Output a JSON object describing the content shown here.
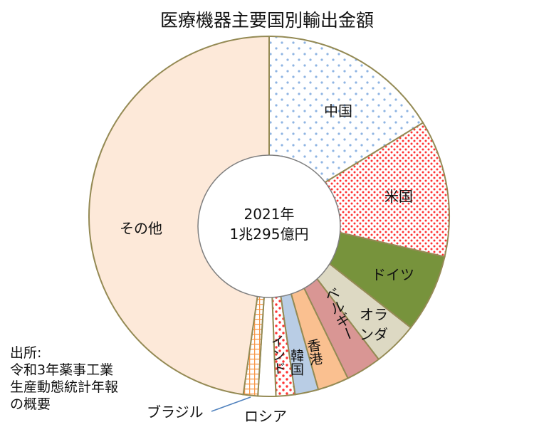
{
  "chart_data": {
    "type": "pie",
    "variant": "donut",
    "title": "医療機器主要国別輸出金額",
    "center_label": {
      "year": "2021年",
      "total": "1兆295億円"
    },
    "unit": "share of total (%), estimated from slice angles",
    "slices": [
      {
        "label": "中国",
        "value": 16.3,
        "color": "#ffffff",
        "pattern": "dots",
        "pattern_color": "#8eb4e3"
      },
      {
        "label": "米国",
        "value": 12.3,
        "color": "#ffffff",
        "pattern": "dense-dots",
        "pattern_color": "#ff3333"
      },
      {
        "label": "ドイツ",
        "value": 7.0,
        "color": "#77933c"
      },
      {
        "label": "オランダ",
        "value": 4.0,
        "color": "#ddd9c3"
      },
      {
        "label": "ベルギー",
        "value": 3.2,
        "color": "#d99694"
      },
      {
        "label": "香港",
        "value": 2.8,
        "color": "#fac090"
      },
      {
        "label": "韓国",
        "value": 2.1,
        "color": "#b9cde5"
      },
      {
        "label": "インド",
        "value": 1.7,
        "color": "#ffffff",
        "pattern": "dots",
        "pattern_color": "#ff3333"
      },
      {
        "label": "ロシア",
        "value": 1.6,
        "color": "#ffffff"
      },
      {
        "label": "ブラジル",
        "value": 1.3,
        "color": "#ffffff",
        "pattern": "grid",
        "pattern_color": "#f79646"
      },
      {
        "label": "その他",
        "value": 47.7,
        "color": "#fde9d9"
      }
    ],
    "source": "出所:\n令和3年薬事工業\n生産動態統計年報\nの概要",
    "border_color": "#948a54"
  }
}
